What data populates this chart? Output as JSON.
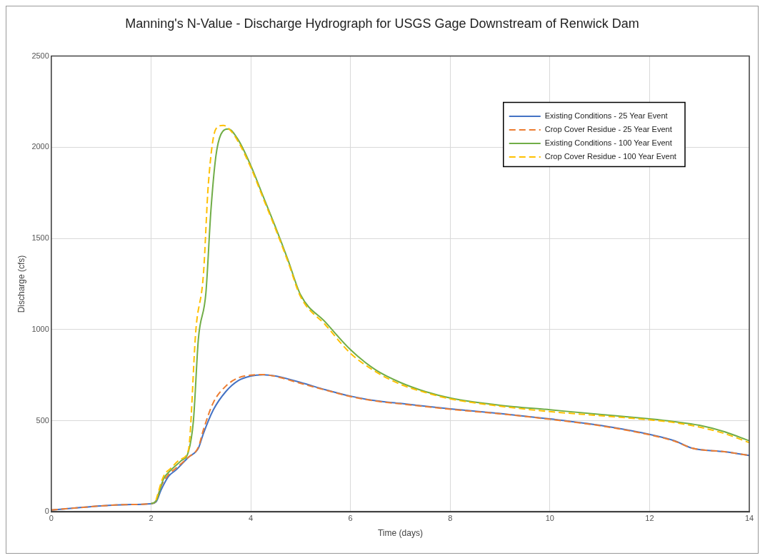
{
  "chart_data": {
    "type": "line",
    "title": "Manning's N-Value - Discharge Hydrograph for USGS Gage Downstream of Renwick Dam",
    "xlabel": "Time (days)",
    "ylabel": "Discharge (cfs)",
    "xlim": [
      0,
      14
    ],
    "xticks": [
      0,
      2,
      4,
      6,
      8,
      10,
      12,
      14
    ],
    "ylim": [
      0,
      2500
    ],
    "yticks": [
      0,
      500,
      1000,
      1500,
      2000,
      2500
    ],
    "grid": true,
    "legend": "top right",
    "marker": "none",
    "series": [
      {
        "name": "Existing Conditions - 25 Year Event",
        "color": "#4472c4",
        "line_style": "solid",
        "x": [
          0,
          0.5,
          1,
          1.5,
          2,
          2.1,
          2.2,
          2.35,
          2.5,
          2.75,
          2.95,
          3.05,
          3.25,
          3.5,
          3.75,
          4,
          4.25,
          4.5,
          5,
          5.5,
          6,
          6.5,
          7,
          8,
          9,
          10,
          11,
          12,
          12.5,
          12.85,
          13.5,
          14
        ],
        "values": [
          10,
          22,
          33,
          40,
          45,
          55,
          120,
          195,
          230,
          300,
          350,
          430,
          560,
          660,
          720,
          745,
          752,
          745,
          710,
          670,
          635,
          610,
          595,
          565,
          540,
          510,
          475,
          425,
          390,
          350,
          330,
          310
        ]
      },
      {
        "name": "Crop Cover Residue - 25 Year Event",
        "color": "#ed7d31",
        "line_style": "dashed",
        "x": [
          0,
          0.5,
          1,
          1.5,
          2,
          2.1,
          2.2,
          2.35,
          2.5,
          2.75,
          2.95,
          3.05,
          3.25,
          3.5,
          3.75,
          4,
          4.25,
          4.5,
          5,
          5.5,
          6,
          6.5,
          7,
          8,
          9,
          10,
          11,
          12,
          12.5,
          12.85,
          13.5,
          14
        ],
        "values": [
          10,
          22,
          33,
          40,
          45,
          60,
          140,
          205,
          240,
          300,
          355,
          450,
          600,
          690,
          735,
          750,
          753,
          743,
          705,
          668,
          633,
          608,
          593,
          563,
          538,
          508,
          473,
          423,
          388,
          350,
          330,
          310
        ]
      },
      {
        "name": "Existing Conditions - 100 Year Event",
        "color": "#70ad47",
        "line_style": "solid",
        "x": [
          2,
          2.1,
          2.25,
          2.4,
          2.6,
          2.75,
          2.85,
          2.95,
          3.1,
          3.2,
          3.3,
          3.4,
          3.55,
          3.75,
          4,
          4.25,
          4.5,
          4.75,
          5,
          5.5,
          6,
          6.5,
          7,
          7.5,
          8,
          9,
          10,
          11,
          12,
          12.5,
          13,
          13.5,
          14
        ],
        "values": [
          45,
          60,
          180,
          230,
          280,
          330,
          500,
          950,
          1200,
          1650,
          1950,
          2070,
          2100,
          2040,
          1900,
          1730,
          1560,
          1380,
          1190,
          1040,
          890,
          780,
          710,
          660,
          625,
          585,
          560,
          535,
          510,
          495,
          475,
          440,
          390
        ]
      },
      {
        "name": "Crop Cover Residue - 100 Year Event",
        "color": "#ffc000",
        "line_style": "dashed",
        "x": [
          2.1,
          2.25,
          2.4,
          2.6,
          2.75,
          2.9,
          3.05,
          3.15,
          3.3,
          3.45,
          3.6,
          3.75,
          4,
          4.25,
          4.5,
          4.75,
          5,
          5.5,
          6,
          6.5,
          7,
          7.5,
          8,
          9,
          10,
          11,
          12,
          12.5,
          13,
          13.5,
          14
        ],
        "values": [
          65,
          195,
          240,
          290,
          340,
          1000,
          1300,
          1800,
          2100,
          2120,
          2090,
          2030,
          1890,
          1720,
          1550,
          1370,
          1180,
          1025,
          870,
          770,
          700,
          655,
          620,
          580,
          550,
          528,
          505,
          490,
          465,
          430,
          380
        ]
      }
    ]
  }
}
